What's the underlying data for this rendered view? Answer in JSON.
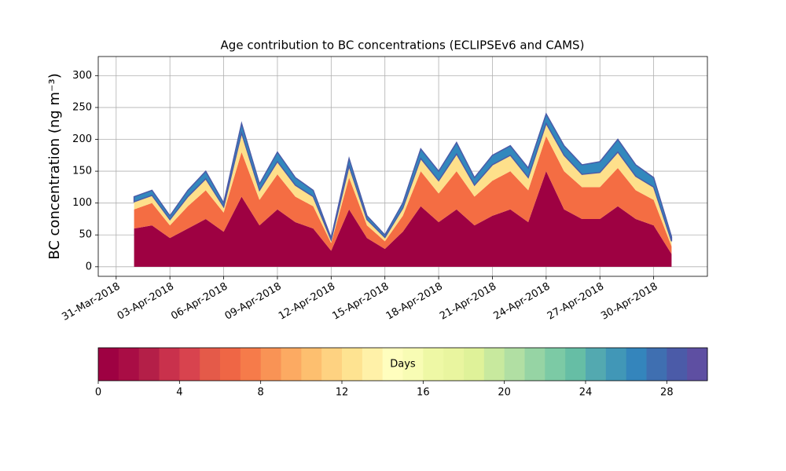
{
  "chart_data": {
    "type": "stacked_area",
    "title": "Age contribution to BC concentrations (ECLIPSEv6 and CAMS)",
    "y_label": "BC concentration (ng m⁻³)",
    "x": [
      "2018-04-01",
      "2018-04-02",
      "2018-04-03",
      "2018-04-04",
      "2018-04-05",
      "2018-04-06",
      "2018-04-07",
      "2018-04-08",
      "2018-04-09",
      "2018-04-10",
      "2018-04-11",
      "2018-04-12",
      "2018-04-13",
      "2018-04-14",
      "2018-04-15",
      "2018-04-16",
      "2018-04-17",
      "2018-04-18",
      "2018-04-19",
      "2018-04-20",
      "2018-04-21",
      "2018-04-22",
      "2018-04-23",
      "2018-04-24",
      "2018-04-25",
      "2018-04-26",
      "2018-04-27",
      "2018-04-28",
      "2018-04-29",
      "2018-04-30",
      "2018-05-01"
    ],
    "series": [
      {
        "color": "#9e0142",
        "values": [
          60,
          65,
          45,
          60,
          75,
          55,
          110,
          65,
          90,
          70,
          60,
          25,
          90,
          45,
          28,
          55,
          95,
          70,
          90,
          65,
          80,
          90,
          70,
          150,
          90,
          75,
          75,
          95,
          75,
          65,
          20
        ]
      },
      {
        "color": "#f46d43",
        "values": [
          30,
          35,
          20,
          35,
          45,
          30,
          70,
          40,
          55,
          40,
          35,
          12,
          50,
          20,
          12,
          25,
          55,
          45,
          60,
          45,
          55,
          60,
          50,
          55,
          60,
          50,
          50,
          60,
          45,
          40,
          12
        ]
      },
      {
        "color": "#fee08b",
        "values": [
          12,
          12,
          9,
          15,
          18,
          9,
          30,
          15,
          20,
          18,
          15,
          5,
          18,
          9,
          6,
          12,
          20,
          20,
          27,
          18,
          25,
          25,
          20,
          20,
          25,
          20,
          23,
          25,
          22,
          20,
          8
        ]
      },
      {
        "color": "#3288bd",
        "values": [
          8,
          8,
          6,
          10,
          12,
          6,
          15,
          10,
          15,
          12,
          10,
          3,
          12,
          6,
          4,
          8,
          15,
          15,
          18,
          12,
          15,
          15,
          15,
          15,
          15,
          15,
          17,
          20,
          18,
          15,
          7
        ]
      }
    ],
    "xlim": [
      "2018-03-30",
      "2018-05-03"
    ],
    "xticks": [
      {
        "value": "2018-03-31",
        "label": "31-Mar-2018"
      },
      {
        "value": "2018-04-03",
        "label": "03-Apr-2018"
      },
      {
        "value": "2018-04-06",
        "label": "06-Apr-2018"
      },
      {
        "value": "2018-04-09",
        "label": "09-Apr-2018"
      },
      {
        "value": "2018-04-12",
        "label": "12-Apr-2018"
      },
      {
        "value": "2018-04-15",
        "label": "15-Apr-2018"
      },
      {
        "value": "2018-04-18",
        "label": "18-Apr-2018"
      },
      {
        "value": "2018-04-21",
        "label": "21-Apr-2018"
      },
      {
        "value": "2018-04-24",
        "label": "24-Apr-2018"
      },
      {
        "value": "2018-04-27",
        "label": "27-Apr-2018"
      },
      {
        "value": "2018-04-30",
        "label": "30-Apr-2018"
      }
    ],
    "ylim": [
      -15,
      330
    ],
    "yticks": [
      0,
      50,
      100,
      150,
      200,
      250,
      300
    ],
    "grid": true,
    "colorbar": {
      "label": "Days",
      "lim": [
        0,
        30
      ],
      "ticks": [
        0,
        4,
        8,
        12,
        16,
        20,
        24,
        28
      ],
      "colors": [
        "#9e0142",
        "#a90d45",
        "#b41f48",
        "#c9314c",
        "#d8434e",
        "#e45a49",
        "#ef6645",
        "#f67b4a",
        "#f99355",
        "#fcaa62",
        "#fdbf6f",
        "#fed281",
        "#fee391",
        "#fff1a8",
        "#fffebe",
        "#f8fcb4",
        "#eef8a5",
        "#e9f59f",
        "#dff299",
        "#c8e99e",
        "#b1dfa3",
        "#96d4a4",
        "#7ccaa5",
        "#66bea5",
        "#53a9b0",
        "#4197b7",
        "#3485bc",
        "#3f6fb1",
        "#4b5ba8",
        "#5e4fa2"
      ]
    }
  }
}
